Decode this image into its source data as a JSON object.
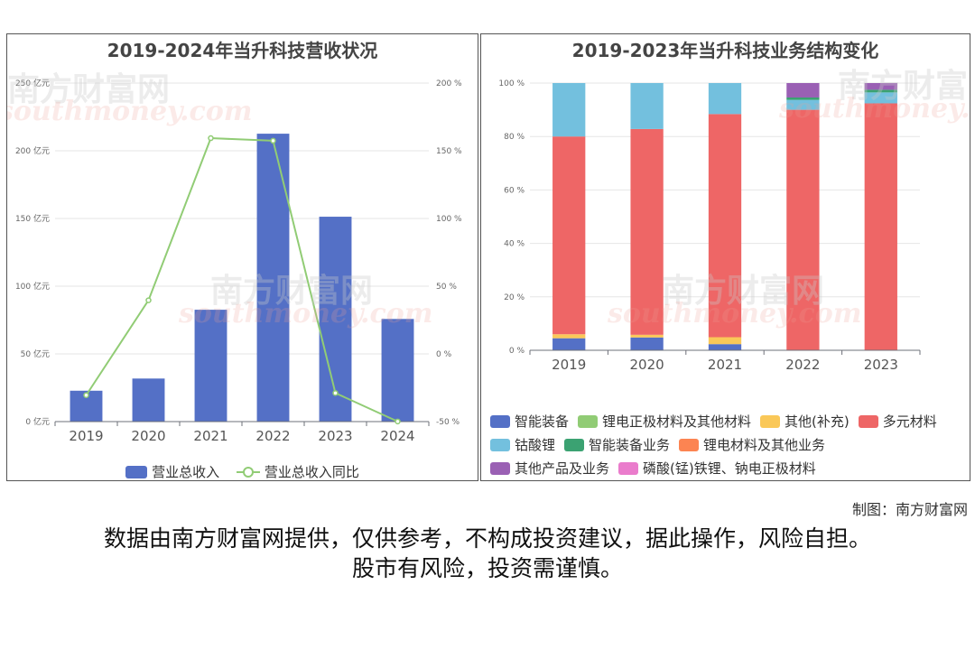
{
  "left_chart": {
    "title": "2019-2024年当升科技营收状况",
    "chart_data": {
      "type": "bar",
      "categories": [
        "2019",
        "2020",
        "2021",
        "2022",
        "2023",
        "2024"
      ],
      "series": [
        {
          "name": "营业总收入",
          "type": "bar",
          "axis": "left",
          "values": [
            22.8,
            31.8,
            82.6,
            212.6,
            151.3,
            75.8
          ],
          "color": "#5470c6"
        },
        {
          "name": "营业总收入同比",
          "type": "line",
          "axis": "right",
          "values": [
            -30.5,
            39.6,
            159.3,
            157.4,
            -28.9,
            -49.9
          ],
          "color": "#91cc75"
        }
      ],
      "y_left": {
        "min": 0,
        "max": 250,
        "ticks": [
          "0 亿元",
          "50 亿元",
          "100 亿元",
          "150 亿元",
          "200 亿元",
          "250 亿元"
        ]
      },
      "y_right": {
        "min": -50,
        "max": 200,
        "ticks": [
          "-50 %",
          "0 %",
          "50 %",
          "100 %",
          "150 %",
          "200 %"
        ]
      },
      "grid": true,
      "legend_position": "bottom"
    }
  },
  "right_chart": {
    "title": "2019-2023年当升科技业务结构变化",
    "chart_data": {
      "type": "bar",
      "stacked": true,
      "categories": [
        "2019",
        "2020",
        "2021",
        "2022",
        "2023"
      ],
      "series": [
        {
          "name": "智能装备",
          "color": "#5470c6",
          "values": [
            4.5,
            4.8,
            2.3,
            0,
            0
          ]
        },
        {
          "name": "锂电正极材料及其他材料",
          "color": "#91cc75",
          "values": [
            0,
            0,
            0,
            0,
            0
          ]
        },
        {
          "name": "其他(补充)",
          "color": "#fac858",
          "values": [
            1.5,
            1.0,
            2.6,
            0,
            0
          ]
        },
        {
          "name": "多元材料",
          "color": "#ee6666",
          "values": [
            74.0,
            77.0,
            83.5,
            90.0,
            92.4
          ]
        },
        {
          "name": "钴酸锂",
          "color": "#73c0de",
          "values": [
            20.0,
            17.2,
            11.6,
            3.7,
            4.1
          ]
        },
        {
          "name": "智能装备业务",
          "color": "#3ba272",
          "values": [
            0,
            0,
            0,
            0.9,
            1.0
          ]
        },
        {
          "name": "锂电材料及其他业务",
          "color": "#fc8452",
          "values": [
            0,
            0,
            0,
            0,
            0
          ]
        },
        {
          "name": "其他产品及业务",
          "color": "#9a60b4",
          "values": [
            0,
            0,
            0,
            5.4,
            2.5
          ]
        },
        {
          "name": "磷酸(锰)铁锂、钠电正极材料",
          "color": "#ea7ccc",
          "values": [
            0,
            0,
            0,
            0,
            0
          ]
        }
      ],
      "y_axis": {
        "min": 0,
        "max": 100,
        "ticks": [
          "0 %",
          "20 %",
          "40 %",
          "60 %",
          "80 %",
          "100 %"
        ]
      },
      "grid": true,
      "legend_position": "bottom"
    }
  },
  "watermark": {
    "cn": "南方财富网",
    "en": "southmoney.com"
  },
  "credit": "制图：南方财富网",
  "disclaimer": {
    "line1": "数据由南方财富网提供，仅供参考，不构成投资建议，据此操作，风险自担。",
    "line2": "股市有风险，投资需谨慎。"
  }
}
